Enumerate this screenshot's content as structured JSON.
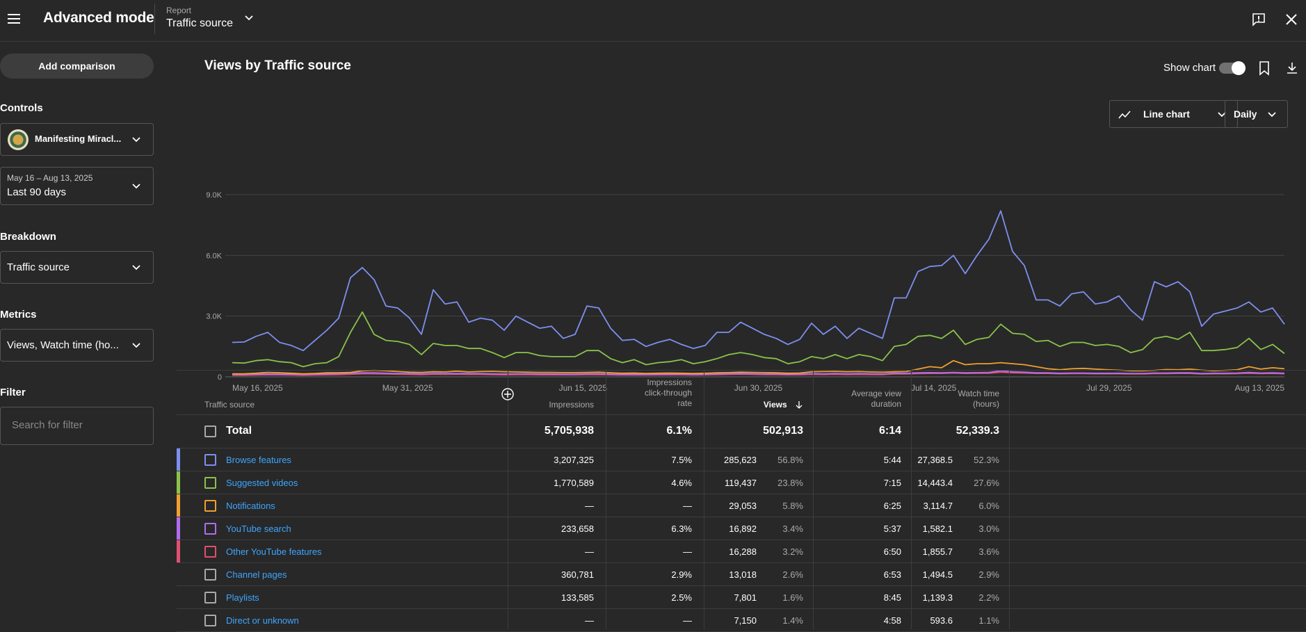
{
  "header": {
    "app_title": "Advanced mode",
    "report_label": "Report",
    "report_value": "Traffic source"
  },
  "sidebar": {
    "add_comparison": "Add comparison",
    "controls_label": "Controls",
    "channel_name": "Manifesting Miracl...",
    "date_range_small": "May 16 – Aug 13, 2025",
    "date_range": "Last 90 days",
    "breakdown_label": "Breakdown",
    "breakdown_value": "Traffic source",
    "metrics_label": "Metrics",
    "metrics_value": "Views, Watch time (ho...",
    "filter_label": "Filter",
    "filter_placeholder": "Search for filter"
  },
  "main": {
    "title": "Views by Traffic source",
    "show_chart": "Show chart",
    "chart_type": "Line chart",
    "period": "Daily"
  },
  "chart_data": {
    "type": "line",
    "ylim": [
      0,
      9000
    ],
    "y_ticks": [
      "0",
      "3.0K",
      "6.0K",
      "9.0K"
    ],
    "x_tick_labels": [
      "May 16, 2025",
      "May 31, 2025",
      "Jun 15, 2025",
      "Jun 30, 2025",
      "Jul 14, 2025",
      "Jul 29, 2025",
      "Aug 13, 2025"
    ],
    "x_start": "May 16, 2025",
    "x_end": "Aug 13, 2025",
    "series": [
      {
        "name": "Browse features",
        "color": "#7e8ff0",
        "values": [
          1700,
          1720,
          2000,
          2200,
          1700,
          1550,
          1300,
          1800,
          2300,
          2900,
          4900,
          5400,
          4800,
          3500,
          3400,
          2900,
          2100,
          4300,
          3600,
          3700,
          2700,
          2900,
          2800,
          2300,
          3000,
          2700,
          2400,
          2500,
          1900,
          2100,
          3500,
          3400,
          2400,
          1800,
          1850,
          1500,
          1700,
          1850,
          1600,
          1400,
          1550,
          2200,
          2200,
          2700,
          2400,
          2100,
          1900,
          1600,
          1850,
          2650,
          2100,
          2500,
          1900,
          2400,
          2150,
          1900,
          3900,
          3900,
          5200,
          5450,
          5500,
          6000,
          5100,
          6000,
          6800,
          8200,
          6200,
          5500,
          3800,
          3800,
          3500,
          4100,
          4200,
          3600,
          3700,
          4000,
          3300,
          2800,
          4700,
          4450,
          4700,
          4200,
          2500,
          3100,
          3250,
          3400,
          3700,
          3200,
          3400,
          2600
        ]
      },
      {
        "name": "Suggested videos",
        "color": "#8bc34a",
        "values": [
          700,
          680,
          800,
          850,
          750,
          700,
          500,
          650,
          700,
          1000,
          2200,
          3200,
          2100,
          1800,
          1750,
          1600,
          1100,
          1650,
          1550,
          1550,
          1400,
          1400,
          1200,
          950,
          1200,
          1200,
          1050,
          1000,
          1000,
          1000,
          1300,
          1300,
          900,
          700,
          850,
          600,
          700,
          750,
          850,
          650,
          750,
          900,
          1100,
          1200,
          1100,
          950,
          900,
          650,
          750,
          1000,
          900,
          1100,
          900,
          1100,
          1000,
          800,
          1500,
          1600,
          2000,
          2050,
          1900,
          2300,
          1600,
          1850,
          1950,
          2600,
          2150,
          2100,
          1750,
          1800,
          1500,
          1700,
          1700,
          1550,
          1600,
          1500,
          1200,
          1350,
          1900,
          2000,
          1850,
          2200,
          1300,
          1300,
          1350,
          1450,
          1900,
          1350,
          1600,
          1150
        ]
      },
      {
        "name": "Notifications",
        "color": "#f0a030",
        "values": [
          150,
          150,
          180,
          220,
          200,
          180,
          150,
          170,
          200,
          200,
          220,
          300,
          320,
          300,
          260,
          230,
          220,
          250,
          240,
          280,
          240,
          260,
          270,
          250,
          240,
          230,
          220,
          220,
          210,
          210,
          220,
          230,
          200,
          180,
          190,
          170,
          180,
          190,
          180,
          170,
          180,
          200,
          210,
          230,
          220,
          210,
          200,
          180,
          190,
          250,
          260,
          270,
          250,
          260,
          240,
          230,
          250,
          260,
          380,
          500,
          450,
          800,
          600,
          650,
          650,
          700,
          650,
          600,
          500,
          400,
          350,
          400,
          420,
          380,
          350,
          330,
          300,
          300,
          320,
          360,
          350,
          380,
          330,
          300,
          320,
          350,
          500,
          380,
          450,
          400
        ]
      },
      {
        "name": "YouTube search",
        "color": "#b06cf0",
        "values": [
          120,
          120,
          130,
          140,
          130,
          130,
          120,
          130,
          140,
          160,
          180,
          200,
          200,
          180,
          170,
          160,
          150,
          170,
          160,
          170,
          160,
          160,
          150,
          140,
          150,
          150,
          140,
          140,
          130,
          130,
          150,
          150,
          130,
          120,
          130,
          120,
          130,
          130,
          140,
          120,
          130,
          140,
          150,
          160,
          150,
          140,
          140,
          130,
          140,
          160,
          150,
          170,
          150,
          160,
          150,
          140,
          180,
          180,
          200,
          210,
          200,
          220,
          200,
          210,
          220,
          300,
          250,
          230,
          200,
          200,
          180,
          190,
          190,
          180,
          180,
          180,
          170,
          170,
          190,
          190,
          200,
          200,
          170,
          180,
          180,
          190,
          220,
          190,
          200,
          180
        ]
      },
      {
        "name": "Other YouTube features",
        "color": "#e05070",
        "values": [
          80,
          80,
          90,
          100,
          100,
          90,
          80,
          90,
          100,
          110,
          130,
          150,
          150,
          140,
          130,
          120,
          110,
          130,
          120,
          130,
          120,
          120,
          110,
          100,
          110,
          110,
          100,
          100,
          100,
          100,
          110,
          110,
          100,
          90,
          95,
          90,
          95,
          100,
          100,
          90,
          95,
          110,
          120,
          130,
          120,
          110,
          105,
          95,
          100,
          120,
          115,
          125,
          115,
          120,
          115,
          110,
          140,
          140,
          160,
          170,
          170,
          190,
          170,
          180,
          180,
          230,
          200,
          190,
          170,
          170,
          150,
          160,
          160,
          150,
          150,
          150,
          140,
          140,
          160,
          160,
          170,
          170,
          140,
          150,
          150,
          160,
          180,
          160,
          170,
          150
        ]
      }
    ]
  },
  "table": {
    "headers": {
      "source": "Traffic source",
      "impressions": "Impressions",
      "ctr_line1": "Impressions",
      "ctr_line2": "click-through",
      "ctr_line3": "rate",
      "views": "Views",
      "avd_line1": "Average view",
      "avd_line2": "duration",
      "wt_line1": "Watch time",
      "wt_line2": "(hours)"
    },
    "total": {
      "label": "Total",
      "impressions": "5,705,938",
      "ctr": "6.1%",
      "views": "502,913",
      "avd": "6:14",
      "watch_time": "52,339.3"
    },
    "rows": [
      {
        "name": "Browse features",
        "color": "#7e8ff0",
        "impressions": "3,207,325",
        "ctr": "7.5%",
        "views": "285,623",
        "views_pct": "56.8%",
        "avd": "5:44",
        "watch_time": "27,368.5",
        "wt_pct": "52.3%"
      },
      {
        "name": "Suggested videos",
        "color": "#8bc34a",
        "impressions": "1,770,589",
        "ctr": "4.6%",
        "views": "119,437",
        "views_pct": "23.8%",
        "avd": "7:15",
        "watch_time": "14,443.4",
        "wt_pct": "27.6%"
      },
      {
        "name": "Notifications",
        "color": "#f0a030",
        "impressions": "—",
        "ctr": "—",
        "views": "29,053",
        "views_pct": "5.8%",
        "avd": "6:25",
        "watch_time": "3,114.7",
        "wt_pct": "6.0%"
      },
      {
        "name": "YouTube search",
        "color": "#b06cf0",
        "impressions": "233,658",
        "ctr": "6.3%",
        "views": "16,892",
        "views_pct": "3.4%",
        "avd": "5:37",
        "watch_time": "1,582.1",
        "wt_pct": "3.0%"
      },
      {
        "name": "Other YouTube features",
        "color": "#e05070",
        "impressions": "—",
        "ctr": "—",
        "views": "16,288",
        "views_pct": "3.2%",
        "avd": "6:50",
        "watch_time": "1,855.7",
        "wt_pct": "3.6%"
      },
      {
        "name": "Channel pages",
        "color": "",
        "impressions": "360,781",
        "ctr": "2.9%",
        "views": "13,018",
        "views_pct": "2.6%",
        "avd": "6:53",
        "watch_time": "1,494.5",
        "wt_pct": "2.9%"
      },
      {
        "name": "Playlists",
        "color": "",
        "impressions": "133,585",
        "ctr": "2.5%",
        "views": "7,801",
        "views_pct": "1.6%",
        "avd": "8:45",
        "watch_time": "1,139.3",
        "wt_pct": "2.2%"
      },
      {
        "name": "Direct or unknown",
        "color": "",
        "impressions": "—",
        "ctr": "—",
        "views": "7,150",
        "views_pct": "1.4%",
        "avd": "4:58",
        "watch_time": "593.6",
        "wt_pct": "1.1%"
      }
    ]
  }
}
